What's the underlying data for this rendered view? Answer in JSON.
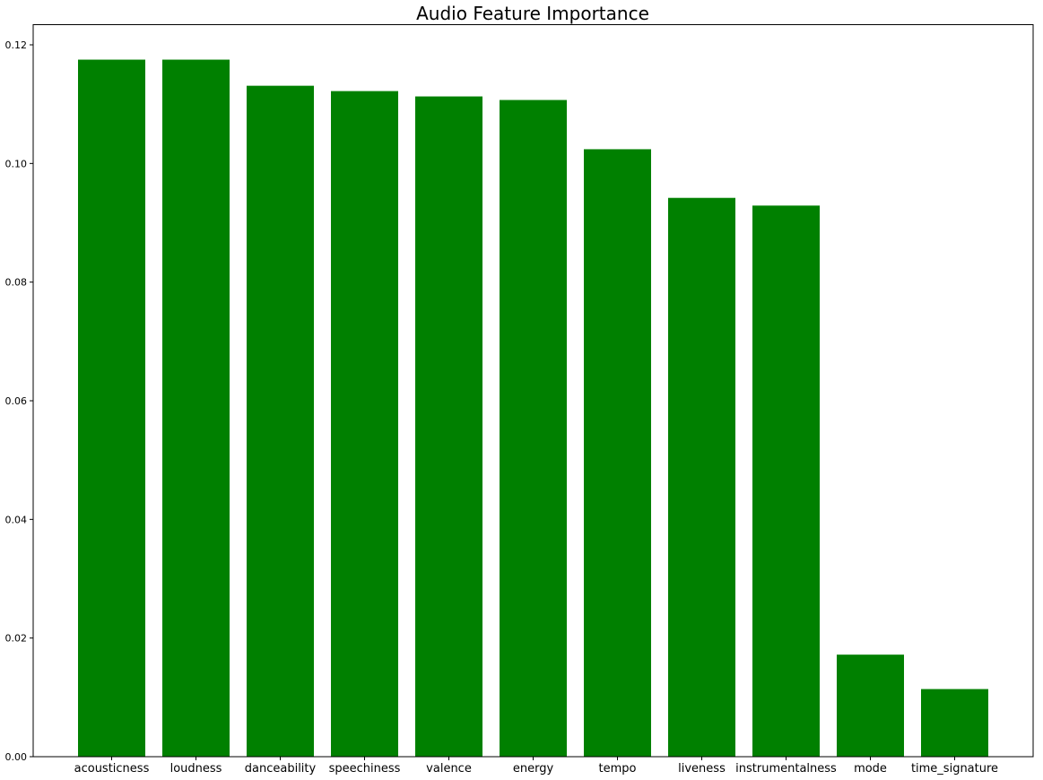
{
  "chart_data": {
    "type": "bar",
    "title": "Audio Feature Importance",
    "xlabel": "",
    "ylabel": "",
    "categories": [
      "acousticness",
      "loudness",
      "danceability",
      "speechiness",
      "valence",
      "energy",
      "tempo",
      "liveness",
      "instrumentalness",
      "mode",
      "time_signature"
    ],
    "values": [
      0.1175,
      0.1175,
      0.1131,
      0.1122,
      0.1113,
      0.1107,
      0.1024,
      0.0942,
      0.0929,
      0.0172,
      0.0114
    ],
    "ylim": [
      0,
      0.1234
    ],
    "yticks": [
      0.0,
      0.02,
      0.04,
      0.06,
      0.08,
      0.1,
      0.12
    ],
    "ytick_labels": [
      "0.00",
      "0.02",
      "0.04",
      "0.06",
      "0.08",
      "0.10",
      "0.12"
    ],
    "bar_color": "#008000",
    "grid": false,
    "legend": "none"
  }
}
